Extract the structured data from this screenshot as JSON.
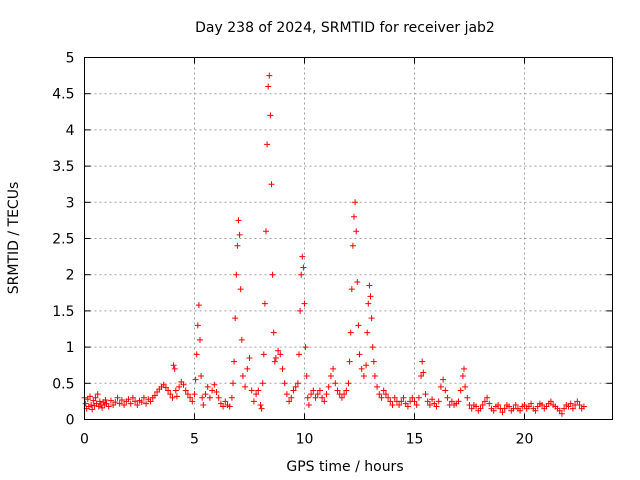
{
  "chart_data": {
    "type": "scatter",
    "title": "Day 238 of 2024, SRMTID for receiver jab2",
    "xlabel": "GPS time / hours",
    "ylabel": "SRMTID / TECUs",
    "xlim": [
      0,
      24
    ],
    "ylim": [
      0,
      5
    ],
    "xticks": [
      0,
      5,
      10,
      15,
      20
    ],
    "xtick_labels": [
      "0",
      "5",
      "10",
      "15",
      "20"
    ],
    "yticks": [
      0,
      0.5,
      1,
      1.5,
      2,
      2.5,
      3,
      3.5,
      4,
      4.5,
      5
    ],
    "ytick_labels": [
      "0",
      "0.5",
      "1",
      "1.5",
      "2",
      "2.5",
      "3",
      "3.5",
      "4",
      "4.5",
      "5"
    ],
    "grid": true,
    "marker": "+",
    "marker_color": "#ff0000",
    "series": [
      {
        "name": "jab2",
        "points": [
          [
            0.0,
            0.3
          ],
          [
            0.05,
            0.22
          ],
          [
            0.1,
            0.15
          ],
          [
            0.15,
            0.28
          ],
          [
            0.2,
            0.18
          ],
          [
            0.25,
            0.32
          ],
          [
            0.3,
            0.2
          ],
          [
            0.35,
            0.14
          ],
          [
            0.4,
            0.26
          ],
          [
            0.45,
            0.19
          ],
          [
            0.5,
            0.3
          ],
          [
            0.55,
            0.22
          ],
          [
            0.6,
            0.35
          ],
          [
            0.65,
            0.18
          ],
          [
            0.7,
            0.25
          ],
          [
            0.75,
            0.2
          ],
          [
            0.8,
            0.16
          ],
          [
            0.85,
            0.24
          ],
          [
            0.9,
            0.2
          ],
          [
            0.95,
            0.27
          ],
          [
            1.0,
            0.22
          ],
          [
            1.1,
            0.18
          ],
          [
            1.2,
            0.26
          ],
          [
            1.3,
            0.2
          ],
          [
            1.4,
            0.24
          ],
          [
            1.5,
            0.3
          ],
          [
            1.6,
            0.22
          ],
          [
            1.7,
            0.27
          ],
          [
            1.8,
            0.2
          ],
          [
            1.9,
            0.25
          ],
          [
            2.0,
            0.28
          ],
          [
            2.1,
            0.22
          ],
          [
            2.2,
            0.3
          ],
          [
            2.3,
            0.25
          ],
          [
            2.4,
            0.2
          ],
          [
            2.5,
            0.26
          ],
          [
            2.6,
            0.24
          ],
          [
            2.7,
            0.3
          ],
          [
            2.8,
            0.22
          ],
          [
            2.9,
            0.28
          ],
          [
            3.0,
            0.25
          ],
          [
            3.1,
            0.3
          ],
          [
            3.2,
            0.33
          ],
          [
            3.3,
            0.38
          ],
          [
            3.4,
            0.42
          ],
          [
            3.5,
            0.45
          ],
          [
            3.6,
            0.48
          ],
          [
            3.7,
            0.44
          ],
          [
            3.8,
            0.4
          ],
          [
            3.9,
            0.35
          ],
          [
            4.0,
            0.3
          ],
          [
            4.05,
            0.75
          ],
          [
            4.1,
            0.7
          ],
          [
            4.15,
            0.4
          ],
          [
            4.2,
            0.32
          ],
          [
            4.3,
            0.45
          ],
          [
            4.4,
            0.52
          ],
          [
            4.5,
            0.48
          ],
          [
            4.6,
            0.4
          ],
          [
            4.7,
            0.35
          ],
          [
            4.8,
            0.3
          ],
          [
            4.9,
            0.25
          ],
          [
            5.0,
            0.35
          ],
          [
            5.05,
            0.55
          ],
          [
            5.1,
            0.9
          ],
          [
            5.15,
            1.3
          ],
          [
            5.2,
            1.58
          ],
          [
            5.25,
            1.1
          ],
          [
            5.3,
            0.6
          ],
          [
            5.35,
            0.3
          ],
          [
            5.4,
            0.2
          ],
          [
            5.5,
            0.35
          ],
          [
            5.6,
            0.45
          ],
          [
            5.7,
            0.3
          ],
          [
            5.8,
            0.4
          ],
          [
            5.9,
            0.48
          ],
          [
            6.0,
            0.38
          ],
          [
            6.1,
            0.3
          ],
          [
            6.2,
            0.22
          ],
          [
            6.3,
            0.18
          ],
          [
            6.4,
            0.25
          ],
          [
            6.5,
            0.2
          ],
          [
            6.6,
            0.18
          ],
          [
            6.7,
            0.3
          ],
          [
            6.75,
            0.5
          ],
          [
            6.8,
            0.8
          ],
          [
            6.85,
            1.4
          ],
          [
            6.9,
            2.0
          ],
          [
            6.95,
            2.4
          ],
          [
            7.0,
            2.75
          ],
          [
            7.05,
            2.55
          ],
          [
            7.1,
            1.8
          ],
          [
            7.15,
            1.1
          ],
          [
            7.2,
            0.6
          ],
          [
            7.3,
            0.45
          ],
          [
            7.4,
            0.7
          ],
          [
            7.5,
            0.85
          ],
          [
            7.6,
            0.4
          ],
          [
            7.7,
            0.25
          ],
          [
            7.8,
            0.35
          ],
          [
            7.9,
            0.4
          ],
          [
            8.0,
            0.2
          ],
          [
            8.05,
            0.15
          ],
          [
            8.1,
            0.5
          ],
          [
            8.15,
            0.9
          ],
          [
            8.2,
            1.6
          ],
          [
            8.25,
            2.6
          ],
          [
            8.3,
            3.8
          ],
          [
            8.35,
            4.6
          ],
          [
            8.4,
            4.75
          ],
          [
            8.45,
            4.2
          ],
          [
            8.5,
            3.25
          ],
          [
            8.55,
            2.0
          ],
          [
            8.6,
            1.2
          ],
          [
            8.65,
            0.8
          ],
          [
            8.7,
            0.85
          ],
          [
            8.8,
            0.95
          ],
          [
            8.9,
            0.9
          ],
          [
            9.0,
            0.7
          ],
          [
            9.1,
            0.5
          ],
          [
            9.2,
            0.35
          ],
          [
            9.3,
            0.25
          ],
          [
            9.4,
            0.3
          ],
          [
            9.5,
            0.4
          ],
          [
            9.6,
            0.45
          ],
          [
            9.7,
            0.5
          ],
          [
            9.75,
            0.9
          ],
          [
            9.8,
            1.5
          ],
          [
            9.85,
            2.0
          ],
          [
            9.9,
            2.25
          ],
          [
            9.95,
            2.1
          ],
          [
            10.0,
            1.6
          ],
          [
            10.05,
            1.0
          ],
          [
            10.1,
            0.6
          ],
          [
            10.15,
            0.3
          ],
          [
            10.2,
            0.2
          ],
          [
            10.3,
            0.35
          ],
          [
            10.4,
            0.4
          ],
          [
            10.5,
            0.3
          ],
          [
            10.6,
            0.35
          ],
          [
            10.7,
            0.4
          ],
          [
            10.8,
            0.3
          ],
          [
            10.9,
            0.25
          ],
          [
            11.0,
            0.35
          ],
          [
            11.1,
            0.45
          ],
          [
            11.2,
            0.6
          ],
          [
            11.3,
            0.7
          ],
          [
            11.4,
            0.5
          ],
          [
            11.5,
            0.4
          ],
          [
            11.6,
            0.35
          ],
          [
            11.7,
            0.3
          ],
          [
            11.8,
            0.35
          ],
          [
            11.9,
            0.4
          ],
          [
            12.0,
            0.5
          ],
          [
            12.05,
            0.8
          ],
          [
            12.1,
            1.2
          ],
          [
            12.15,
            1.8
          ],
          [
            12.2,
            2.4
          ],
          [
            12.25,
            2.8
          ],
          [
            12.3,
            3.0
          ],
          [
            12.35,
            2.6
          ],
          [
            12.4,
            1.9
          ],
          [
            12.45,
            1.3
          ],
          [
            12.5,
            0.9
          ],
          [
            12.6,
            0.7
          ],
          [
            12.7,
            0.6
          ],
          [
            12.8,
            0.75
          ],
          [
            12.85,
            1.2
          ],
          [
            12.9,
            1.6
          ],
          [
            12.95,
            1.85
          ],
          [
            13.0,
            1.7
          ],
          [
            13.05,
            1.4
          ],
          [
            13.1,
            1.0
          ],
          [
            13.15,
            0.8
          ],
          [
            13.2,
            0.6
          ],
          [
            13.3,
            0.45
          ],
          [
            13.4,
            0.35
          ],
          [
            13.5,
            0.3
          ],
          [
            13.6,
            0.4
          ],
          [
            13.7,
            0.35
          ],
          [
            13.8,
            0.3
          ],
          [
            13.9,
            0.25
          ],
          [
            14.0,
            0.2
          ],
          [
            14.1,
            0.3
          ],
          [
            14.2,
            0.25
          ],
          [
            14.3,
            0.2
          ],
          [
            14.4,
            0.25
          ],
          [
            14.5,
            0.3
          ],
          [
            14.6,
            0.22
          ],
          [
            14.7,
            0.18
          ],
          [
            14.8,
            0.25
          ],
          [
            14.9,
            0.3
          ],
          [
            15.0,
            0.25
          ],
          [
            15.1,
            0.2
          ],
          [
            15.2,
            0.3
          ],
          [
            15.3,
            0.6
          ],
          [
            15.35,
            0.8
          ],
          [
            15.4,
            0.65
          ],
          [
            15.5,
            0.35
          ],
          [
            15.6,
            0.25
          ],
          [
            15.7,
            0.2
          ],
          [
            15.8,
            0.28
          ],
          [
            15.9,
            0.22
          ],
          [
            16.0,
            0.18
          ],
          [
            16.1,
            0.25
          ],
          [
            16.2,
            0.45
          ],
          [
            16.3,
            0.55
          ],
          [
            16.4,
            0.4
          ],
          [
            16.5,
            0.3
          ],
          [
            16.6,
            0.2
          ],
          [
            16.7,
            0.25
          ],
          [
            16.8,
            0.2
          ],
          [
            16.9,
            0.22
          ],
          [
            17.0,
            0.25
          ],
          [
            17.1,
            0.4
          ],
          [
            17.2,
            0.6
          ],
          [
            17.25,
            0.7
          ],
          [
            17.3,
            0.45
          ],
          [
            17.4,
            0.3
          ],
          [
            17.5,
            0.2
          ],
          [
            17.6,
            0.15
          ],
          [
            17.7,
            0.2
          ],
          [
            17.8,
            0.18
          ],
          [
            17.9,
            0.12
          ],
          [
            18.0,
            0.15
          ],
          [
            18.1,
            0.2
          ],
          [
            18.2,
            0.25
          ],
          [
            18.3,
            0.3
          ],
          [
            18.4,
            0.22
          ],
          [
            18.5,
            0.15
          ],
          [
            18.6,
            0.12
          ],
          [
            18.7,
            0.18
          ],
          [
            18.8,
            0.2
          ],
          [
            18.9,
            0.15
          ],
          [
            19.0,
            0.1
          ],
          [
            19.1,
            0.15
          ],
          [
            19.2,
            0.2
          ],
          [
            19.3,
            0.18
          ],
          [
            19.4,
            0.12
          ],
          [
            19.5,
            0.15
          ],
          [
            19.6,
            0.2
          ],
          [
            19.7,
            0.15
          ],
          [
            19.8,
            0.12
          ],
          [
            19.9,
            0.18
          ],
          [
            20.0,
            0.2
          ],
          [
            20.1,
            0.15
          ],
          [
            20.2,
            0.18
          ],
          [
            20.3,
            0.22
          ],
          [
            20.4,
            0.15
          ],
          [
            20.5,
            0.12
          ],
          [
            20.6,
            0.18
          ],
          [
            20.7,
            0.22
          ],
          [
            20.8,
            0.2
          ],
          [
            20.9,
            0.15
          ],
          [
            21.0,
            0.18
          ],
          [
            21.1,
            0.22
          ],
          [
            21.2,
            0.25
          ],
          [
            21.3,
            0.2
          ],
          [
            21.4,
            0.18
          ],
          [
            21.5,
            0.15
          ],
          [
            21.6,
            0.12
          ],
          [
            21.7,
            0.08
          ],
          [
            21.8,
            0.15
          ],
          [
            21.9,
            0.2
          ],
          [
            22.0,
            0.18
          ],
          [
            22.1,
            0.22
          ],
          [
            22.2,
            0.15
          ],
          [
            22.3,
            0.2
          ],
          [
            22.4,
            0.25
          ],
          [
            22.5,
            0.2
          ],
          [
            22.6,
            0.15
          ],
          [
            22.7,
            0.18
          ]
        ]
      }
    ]
  }
}
